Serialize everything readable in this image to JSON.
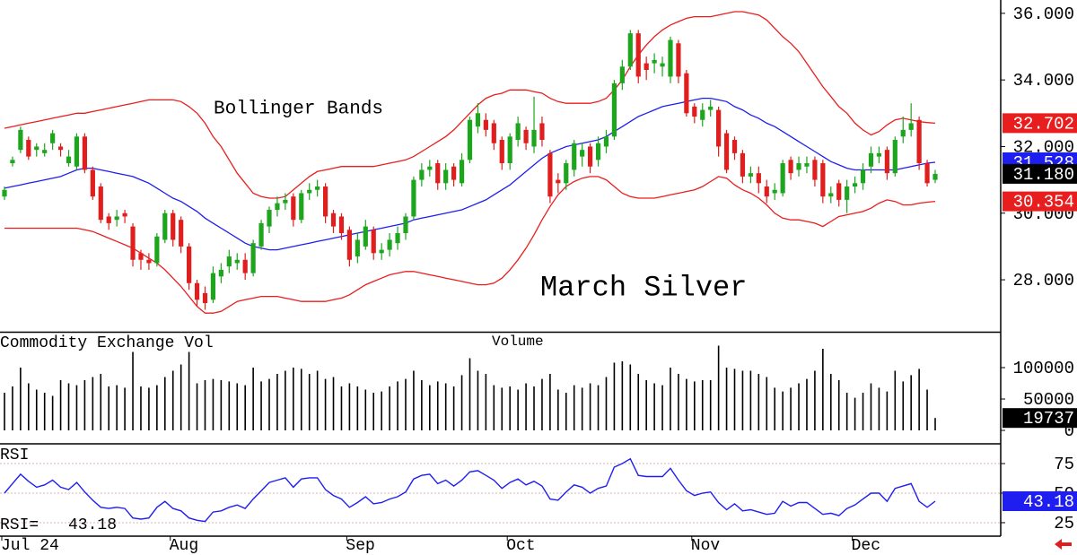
{
  "chart_data": [
    {
      "type": "candlestick",
      "title": "March Silver",
      "annotation": "Bollinger Bands",
      "categories": [
        "Jul 24",
        null,
        null,
        null,
        null,
        null,
        null,
        null,
        null,
        null,
        null,
        null,
        null,
        null,
        null,
        null,
        null,
        null,
        null,
        null,
        null,
        "Aug",
        null,
        null,
        null,
        null,
        null,
        null,
        null,
        null,
        null,
        null,
        null,
        null,
        null,
        null,
        null,
        null,
        null,
        null,
        null,
        null,
        null,
        "Sep",
        null,
        null,
        null,
        null,
        null,
        null,
        null,
        null,
        null,
        null,
        null,
        null,
        null,
        null,
        null,
        null,
        null,
        null,
        null,
        "Oct",
        null,
        null,
        null,
        null,
        null,
        null,
        null,
        null,
        null,
        null,
        null,
        null,
        null,
        null,
        null,
        null,
        null,
        null,
        null,
        null,
        null,
        null,
        "Nov",
        null,
        null,
        null,
        null,
        null,
        null,
        null,
        null,
        null,
        null,
        null,
        null,
        null,
        null,
        null,
        null,
        null,
        null,
        null,
        "Dec",
        null,
        null,
        null,
        null,
        null,
        null,
        null,
        null,
        null,
        null
      ],
      "ohlc": {
        "up_color": "#1ea51e",
        "down_color": "#e01e1e",
        "open": [
          30.5,
          31.5,
          31.9,
          32.2,
          31.9,
          31.8,
          32.1,
          32.0,
          31.5,
          31.4,
          32.3,
          31.3,
          30.8,
          29.9,
          29.8,
          30.0,
          29.6,
          28.8,
          28.6,
          28.5,
          29.2,
          30.0,
          29.8,
          29.0,
          27.9,
          27.6,
          27.4,
          28.1,
          28.4,
          28.5,
          28.6,
          28.2,
          29.0,
          29.6,
          30.1,
          30.3,
          30.5,
          29.8,
          30.6,
          30.7,
          30.8,
          30.0,
          29.9,
          29.5,
          28.7,
          29.0,
          29.5,
          28.8,
          28.9,
          29.1,
          29.4,
          29.9,
          31.0,
          31.3,
          31.5,
          30.9,
          31.4,
          30.9,
          31.6,
          32.6,
          32.8,
          32.7,
          32.2,
          31.5,
          32.2,
          32.5,
          32.0,
          32.7,
          31.8,
          31.0,
          30.9,
          31.3,
          31.7,
          32.0,
          31.6,
          32.0,
          32.3,
          33.9,
          34.4,
          35.4,
          34.5,
          34.5,
          34.4,
          34.1,
          35.1,
          34.2,
          33.2,
          32.8,
          33.1,
          33.1,
          32.4,
          32.2,
          31.8,
          31.1,
          31.2,
          30.8,
          30.6,
          30.6,
          31.6,
          31.3,
          31.4,
          31.6,
          31.5,
          30.5,
          30.9,
          30.4,
          30.8,
          30.9,
          31.4,
          31.7,
          31.9,
          31.2,
          32.3,
          32.5,
          32.8,
          31.5,
          31.0
        ],
        "high": [
          30.8,
          31.7,
          32.6,
          32.3,
          32.1,
          32.1,
          32.5,
          32.1,
          31.9,
          32.4,
          32.4,
          31.4,
          30.9,
          30.0,
          30.1,
          30.1,
          29.7,
          28.9,
          28.8,
          29.4,
          30.1,
          30.1,
          29.9,
          29.1,
          28.0,
          27.8,
          28.4,
          28.5,
          28.9,
          28.8,
          28.8,
          29.2,
          29.8,
          30.2,
          30.5,
          30.6,
          30.6,
          30.7,
          30.9,
          31.0,
          30.9,
          30.1,
          30.0,
          29.6,
          29.4,
          29.8,
          29.6,
          29.1,
          29.4,
          29.6,
          30.0,
          31.1,
          31.5,
          31.6,
          31.6,
          31.5,
          31.5,
          31.8,
          32.9,
          33.3,
          33.0,
          32.8,
          32.3,
          32.4,
          32.9,
          32.6,
          33.5,
          32.9,
          31.9,
          31.2,
          31.6,
          32.2,
          32.1,
          32.1,
          32.3,
          32.5,
          34.0,
          34.6,
          35.5,
          35.5,
          34.7,
          34.8,
          34.7,
          35.3,
          35.2,
          34.3,
          33.3,
          33.3,
          33.4,
          33.2,
          32.5,
          32.3,
          31.9,
          31.4,
          31.4,
          31.0,
          30.9,
          31.6,
          31.7,
          31.7,
          31.7,
          31.7,
          31.6,
          30.8,
          31.0,
          31.0,
          31.1,
          31.5,
          32.0,
          32.0,
          32.0,
          32.3,
          32.9,
          33.3,
          32.9,
          31.6,
          31.3
        ],
        "low": [
          30.4,
          31.4,
          31.8,
          31.6,
          31.7,
          31.7,
          31.9,
          31.7,
          31.4,
          31.3,
          31.2,
          30.4,
          29.7,
          29.5,
          29.6,
          29.7,
          28.4,
          28.3,
          28.3,
          28.4,
          29.1,
          29.0,
          28.8,
          27.7,
          27.2,
          27.1,
          27.3,
          27.9,
          28.2,
          28.3,
          28.0,
          28.1,
          28.9,
          29.4,
          29.9,
          30.1,
          29.6,
          29.7,
          30.4,
          30.5,
          29.7,
          29.4,
          29.2,
          28.4,
          28.5,
          28.9,
          28.6,
          28.6,
          28.7,
          28.9,
          29.2,
          29.8,
          30.8,
          31.1,
          30.7,
          30.7,
          30.8,
          30.8,
          31.5,
          32.4,
          32.3,
          31.9,
          31.3,
          31.3,
          32.0,
          31.9,
          31.8,
          32.0,
          30.3,
          30.6,
          30.7,
          31.1,
          31.4,
          31.2,
          31.4,
          31.8,
          32.2,
          33.7,
          34.3,
          33.9,
          34.0,
          34.2,
          34.1,
          33.9,
          33.9,
          32.9,
          32.7,
          32.6,
          32.9,
          31.7,
          31.2,
          31.6,
          30.9,
          30.9,
          30.6,
          30.3,
          30.4,
          30.5,
          31.0,
          31.1,
          31.2,
          30.8,
          30.3,
          30.3,
          30.2,
          30.0,
          30.6,
          30.7,
          31.2,
          31.5,
          31.0,
          31.1,
          32.1,
          32.3,
          31.3,
          30.8,
          30.9
        ],
        "close": [
          30.7,
          31.6,
          32.5,
          31.7,
          32.0,
          31.9,
          32.4,
          31.9,
          31.7,
          32.3,
          31.3,
          30.5,
          29.8,
          29.7,
          29.9,
          29.9,
          28.6,
          28.6,
          28.5,
          29.3,
          30.0,
          29.2,
          29.0,
          27.9,
          27.4,
          27.3,
          28.2,
          28.3,
          28.7,
          28.6,
          28.2,
          29.1,
          29.7,
          30.1,
          30.3,
          30.4,
          29.8,
          30.6,
          30.7,
          30.8,
          29.9,
          29.6,
          29.4,
          28.6,
          29.2,
          29.6,
          28.8,
          28.9,
          29.2,
          29.4,
          29.9,
          31.0,
          31.3,
          31.4,
          30.9,
          31.3,
          31.0,
          31.6,
          32.8,
          33.0,
          32.5,
          32.1,
          31.5,
          32.3,
          32.7,
          32.1,
          32.5,
          32.2,
          30.5,
          30.9,
          31.5,
          32.1,
          31.9,
          31.4,
          32.1,
          32.3,
          33.9,
          34.4,
          35.4,
          34.1,
          34.3,
          34.6,
          34.5,
          35.2,
          34.1,
          33.0,
          32.9,
          33.1,
          33.2,
          32.0,
          31.3,
          31.8,
          31.1,
          31.2,
          30.9,
          30.5,
          30.7,
          31.5,
          31.2,
          31.5,
          31.5,
          31.0,
          30.5,
          30.6,
          30.4,
          30.8,
          30.9,
          31.3,
          31.8,
          31.8,
          31.2,
          32.2,
          32.5,
          32.7,
          31.5,
          30.9,
          31.18
        ],
        "last_close_label": "31.180"
      },
      "bands": {
        "color": "#e81e1e",
        "middle_color": "#1e1ef0",
        "upper": [
          32.55,
          32.6,
          32.65,
          32.7,
          32.75,
          32.8,
          32.85,
          32.9,
          32.95,
          33.0,
          33.0,
          33.05,
          33.1,
          33.15,
          33.2,
          33.25,
          33.3,
          33.35,
          33.4,
          33.4,
          33.4,
          33.4,
          33.35,
          33.2,
          33.0,
          32.7,
          32.3,
          32.0,
          31.6,
          31.2,
          30.9,
          30.6,
          30.5,
          30.45,
          30.45,
          30.5,
          30.7,
          30.9,
          31.1,
          31.25,
          31.3,
          31.35,
          31.4,
          31.4,
          31.4,
          31.4,
          31.4,
          31.45,
          31.5,
          31.55,
          31.6,
          31.7,
          31.85,
          32.0,
          32.15,
          32.3,
          32.5,
          32.75,
          33.0,
          33.25,
          33.45,
          33.55,
          33.6,
          33.7,
          33.7,
          33.7,
          33.65,
          33.6,
          33.45,
          33.35,
          33.3,
          33.3,
          33.3,
          33.3,
          33.35,
          33.45,
          33.7,
          34.0,
          34.4,
          34.75,
          35.05,
          35.3,
          35.5,
          35.65,
          35.75,
          35.85,
          35.9,
          35.9,
          35.9,
          35.95,
          36.0,
          36.05,
          36.05,
          36.0,
          35.95,
          35.8,
          35.55,
          35.3,
          35.1,
          34.85,
          34.5,
          34.15,
          33.8,
          33.5,
          33.2,
          33.0,
          32.7,
          32.5,
          32.35,
          32.45,
          32.65,
          32.8,
          32.85,
          32.8,
          32.75,
          32.72,
          32.702
        ],
        "middle": [
          30.75,
          30.8,
          30.85,
          30.9,
          30.95,
          31.0,
          31.05,
          31.1,
          31.2,
          31.3,
          31.35,
          31.35,
          31.3,
          31.25,
          31.2,
          31.15,
          31.1,
          31.0,
          30.9,
          30.75,
          30.6,
          30.45,
          30.35,
          30.2,
          30.05,
          29.85,
          29.7,
          29.55,
          29.4,
          29.25,
          29.1,
          29.0,
          28.95,
          28.9,
          28.9,
          28.95,
          29.0,
          29.05,
          29.1,
          29.15,
          29.2,
          29.25,
          29.3,
          29.35,
          29.4,
          29.45,
          29.5,
          29.55,
          29.6,
          29.65,
          29.7,
          29.8,
          29.85,
          29.9,
          29.95,
          30.0,
          30.05,
          30.1,
          30.2,
          30.3,
          30.4,
          30.55,
          30.7,
          30.85,
          31.05,
          31.25,
          31.45,
          31.65,
          31.8,
          31.9,
          32.0,
          32.05,
          32.1,
          32.15,
          32.2,
          32.3,
          32.45,
          32.6,
          32.75,
          32.9,
          33.0,
          33.1,
          33.2,
          33.25,
          33.3,
          33.35,
          33.4,
          33.45,
          33.45,
          33.4,
          33.35,
          33.2,
          33.1,
          32.95,
          32.85,
          32.7,
          32.6,
          32.45,
          32.3,
          32.15,
          32.0,
          31.85,
          31.7,
          31.55,
          31.45,
          31.35,
          31.3,
          31.3,
          31.3,
          31.3,
          31.3,
          31.3,
          31.35,
          31.4,
          31.45,
          31.5,
          31.528
        ],
        "lower": [
          29.55,
          29.55,
          29.55,
          29.55,
          29.55,
          29.55,
          29.55,
          29.55,
          29.55,
          29.55,
          29.5,
          29.45,
          29.35,
          29.25,
          29.15,
          29.05,
          28.95,
          28.8,
          28.65,
          28.5,
          28.3,
          28.05,
          27.8,
          27.5,
          27.2,
          27.0,
          27.0,
          27.05,
          27.2,
          27.35,
          27.4,
          27.45,
          27.5,
          27.5,
          27.5,
          27.45,
          27.4,
          27.35,
          27.35,
          27.35,
          27.35,
          27.4,
          27.45,
          27.55,
          27.7,
          27.85,
          27.95,
          28.05,
          28.15,
          28.2,
          28.25,
          28.25,
          28.2,
          28.15,
          28.1,
          28.05,
          28.0,
          27.95,
          27.9,
          27.85,
          27.85,
          27.9,
          28.05,
          28.3,
          28.6,
          28.95,
          29.35,
          29.8,
          30.2,
          30.55,
          30.8,
          30.95,
          31.05,
          31.1,
          31.1,
          31.0,
          30.8,
          30.6,
          30.5,
          30.45,
          30.45,
          30.45,
          30.5,
          30.55,
          30.6,
          30.65,
          30.7,
          30.8,
          30.95,
          31.1,
          31.05,
          30.85,
          30.7,
          30.6,
          30.45,
          30.25,
          30.0,
          29.85,
          29.8,
          29.8,
          29.75,
          29.7,
          29.6,
          29.75,
          29.9,
          29.95,
          30.0,
          30.05,
          30.15,
          30.3,
          30.4,
          30.35,
          30.25,
          30.25,
          30.3,
          30.33,
          30.354
        ]
      },
      "ylim": [
        26.44,
        36.4
      ],
      "yticks": [
        {
          "value": 28,
          "label": "28.000"
        },
        {
          "value": 30,
          "label": "30.000"
        },
        {
          "value": 32,
          "label": "32.000"
        },
        {
          "value": 34,
          "label": "34.000"
        },
        {
          "value": 36,
          "label": "36.000"
        }
      ]
    },
    {
      "type": "bar",
      "title": "Commodity Exchange Vol",
      "subtitle": "Volume",
      "color": "#000000",
      "values": [
        60000,
        70000,
        100000,
        75000,
        65000,
        60000,
        55000,
        80000,
        75000,
        72000,
        80000,
        85000,
        90000,
        70000,
        72000,
        68000,
        125000,
        70000,
        68000,
        72000,
        85000,
        95000,
        105000,
        125000,
        75000,
        80000,
        82000,
        80000,
        78000,
        75000,
        72000,
        100000,
        78000,
        82000,
        90000,
        95000,
        100000,
        98000,
        90000,
        95000,
        82000,
        85000,
        70000,
        75000,
        70000,
        65000,
        60000,
        62000,
        70000,
        78000,
        82000,
        95000,
        80000,
        72000,
        78000,
        75000,
        70000,
        88000,
        115000,
        95000,
        90000,
        72000,
        68000,
        70000,
        65000,
        75000,
        70000,
        82000,
        90000,
        65000,
        60000,
        72000,
        68000,
        75000,
        72000,
        85000,
        108000,
        110000,
        105000,
        90000,
        80000,
        75000,
        72000,
        100000,
        90000,
        82000,
        78000,
        80000,
        80000,
        135000,
        100000,
        98000,
        95000,
        95000,
        90000,
        85000,
        68000,
        62000,
        68000,
        75000,
        82000,
        95000,
        130000,
        90000,
        80000,
        60000,
        52000,
        60000,
        75000,
        68000,
        62000,
        95000,
        78000,
        88000,
        98000,
        65000,
        19737
      ],
      "ylim": [
        -21400,
        154300
      ],
      "yticks": [
        0,
        50000,
        100000
      ]
    },
    {
      "type": "line",
      "title": "RSI",
      "label": "RSI=",
      "color": "#1e1ef0",
      "grid": true,
      "values": [
        50,
        58,
        66,
        60,
        55,
        57,
        61,
        55,
        53,
        59,
        51,
        44,
        38,
        37,
        38,
        37,
        29,
        28,
        29,
        38,
        43,
        37,
        35,
        29,
        27,
        26,
        34,
        35,
        38,
        40,
        37,
        45,
        52,
        59,
        61,
        63,
        55,
        62,
        63,
        63,
        53,
        48,
        45,
        38,
        42,
        47,
        41,
        42,
        45,
        47,
        51,
        62,
        65,
        66,
        58,
        61,
        56,
        61,
        68,
        69,
        65,
        61,
        54,
        59,
        62,
        57,
        60,
        56,
        45,
        44,
        51,
        57,
        55,
        50,
        54,
        56,
        72,
        75,
        79,
        65,
        64,
        64,
        64,
        71,
        61,
        52,
        48,
        50,
        51,
        42,
        36,
        41,
        35,
        36,
        34,
        32,
        33,
        43,
        39,
        42,
        42,
        37,
        32,
        33,
        31,
        37,
        40,
        45,
        50,
        50,
        43,
        54,
        56,
        58,
        43,
        38,
        43.18
      ],
      "ylim": [
        13.6,
        91.7
      ],
      "yticks": [
        25,
        50,
        75
      ]
    }
  ]
}
